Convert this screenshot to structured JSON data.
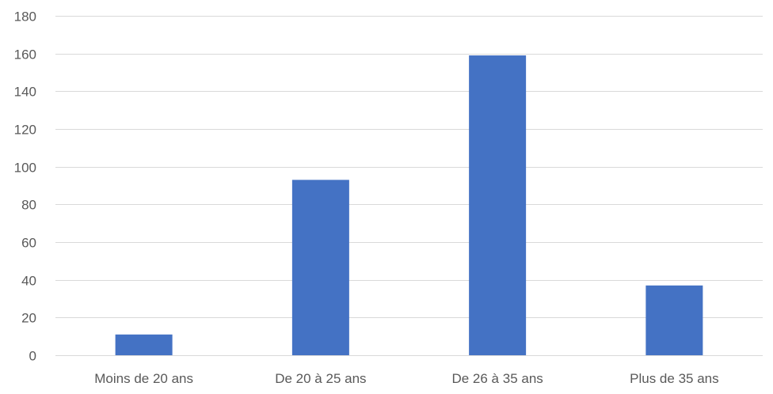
{
  "chart_data": {
    "type": "bar",
    "title": "",
    "xlabel": "",
    "ylabel": "",
    "categories": [
      "Moins de 20 ans",
      "De 20 à 25 ans",
      "De 26 à 35 ans",
      "Plus de 35 ans"
    ],
    "values": [
      11,
      93,
      159,
      37
    ],
    "ylim": [
      0,
      180
    ],
    "yticks": [
      0,
      20,
      40,
      60,
      80,
      100,
      120,
      140,
      160,
      180
    ],
    "grid": true,
    "legend": "none",
    "bar_color": "#4472C4"
  }
}
